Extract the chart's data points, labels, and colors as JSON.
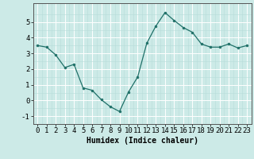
{
  "x": [
    0,
    1,
    2,
    3,
    4,
    5,
    6,
    7,
    8,
    9,
    10,
    11,
    12,
    13,
    14,
    15,
    16,
    17,
    18,
    19,
    20,
    21,
    22,
    23
  ],
  "y": [
    3.5,
    3.4,
    2.9,
    2.1,
    2.3,
    0.8,
    0.65,
    0.05,
    -0.4,
    -0.7,
    0.55,
    1.5,
    3.65,
    4.75,
    5.6,
    5.1,
    4.65,
    4.35,
    3.6,
    3.4,
    3.4,
    3.6,
    3.35,
    3.5
  ],
  "xlabel": "Humidex (Indice chaleur)",
  "ylim": [
    -1.5,
    6.2
  ],
  "xlim": [
    -0.5,
    23.5
  ],
  "yticks": [
    -1,
    0,
    1,
    2,
    3,
    4,
    5
  ],
  "xticks": [
    0,
    1,
    2,
    3,
    4,
    5,
    6,
    7,
    8,
    9,
    10,
    11,
    12,
    13,
    14,
    15,
    16,
    17,
    18,
    19,
    20,
    21,
    22,
    23
  ],
  "line_color": "#1f7068",
  "marker_color": "#1f7068",
  "bg_color": "#cceae7",
  "grid_major_color": "#ffffff",
  "grid_minor_color": "#b8dcd9",
  "xlabel_fontsize": 7,
  "tick_fontsize": 6.5
}
